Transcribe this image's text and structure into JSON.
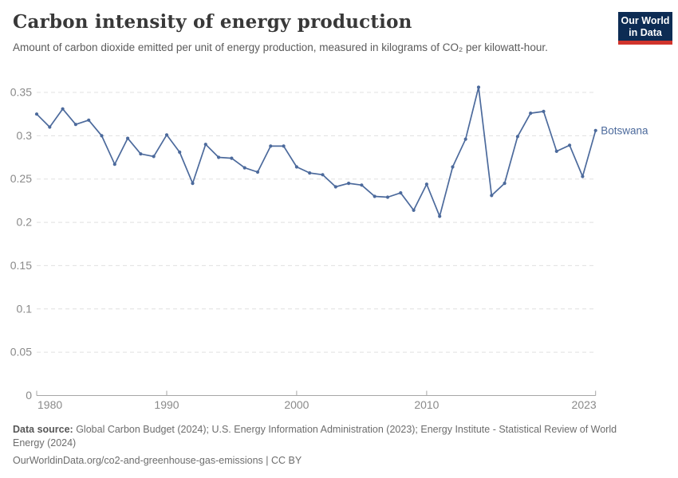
{
  "logo": {
    "line1": "Our World",
    "line2": "in Data"
  },
  "chart_data": {
    "type": "line",
    "title": "Carbon intensity of energy production",
    "subtitle": "Amount of carbon dioxide emitted per unit of energy production, measured in kilograms of CO₂ per kilowatt-hour.",
    "xlabel": "",
    "ylabel": "",
    "grid": "horizontal-dashed",
    "legend_position": "end-of-line-label",
    "ylim": [
      0,
      0.35
    ],
    "x": [
      1980,
      1981,
      1982,
      1983,
      1984,
      1985,
      1986,
      1987,
      1988,
      1989,
      1990,
      1991,
      1992,
      1993,
      1994,
      1995,
      1996,
      1997,
      1998,
      1999,
      2000,
      2001,
      2002,
      2003,
      2004,
      2005,
      2006,
      2007,
      2008,
      2009,
      2010,
      2011,
      2012,
      2013,
      2014,
      2015,
      2016,
      2017,
      2018,
      2019,
      2020,
      2021,
      2022,
      2023
    ],
    "series": [
      {
        "name": "Botswana",
        "color": "#4C6A9C",
        "values": [
          0.325,
          0.31,
          0.331,
          0.313,
          0.318,
          0.3,
          0.267,
          0.297,
          0.279,
          0.276,
          0.301,
          0.281,
          0.245,
          0.29,
          0.275,
          0.274,
          0.263,
          0.258,
          0.288,
          0.288,
          0.264,
          0.257,
          0.255,
          0.241,
          0.245,
          0.243,
          0.23,
          0.229,
          0.234,
          0.214,
          0.244,
          0.207,
          0.264,
          0.296,
          0.356,
          0.231,
          0.245,
          0.299,
          0.326,
          0.328,
          0.282,
          0.289,
          0.253,
          0.306
        ]
      }
    ],
    "yticks": {
      "values": [
        0,
        0.05,
        0.1,
        0.15,
        0.2,
        0.25,
        0.3,
        0.35
      ],
      "labels": [
        "0",
        "0.05",
        "0.1",
        "0.15",
        "0.2",
        "0.25",
        "0.3",
        "0.35"
      ]
    },
    "xticks": {
      "values": [
        1980,
        1990,
        2000,
        2010,
        2023
      ],
      "labels": [
        "1980",
        "1990",
        "2000",
        "2010",
        "2023"
      ]
    }
  },
  "footer": {
    "source_label": "Data source:",
    "source_text": " Global Carbon Budget (2024); U.S. Energy Information Administration (2023); Energy Institute - Statistical Review of World Energy (2024)",
    "url": "OurWorldinData.org/co2-and-greenhouse-gas-emissions",
    "license": " | CC BY"
  },
  "colors": {
    "line": "#4C6A9C",
    "axis_text": "#8a8a8a",
    "grid": "#e0e0e0",
    "axis_line": "#a6a6a6"
  }
}
